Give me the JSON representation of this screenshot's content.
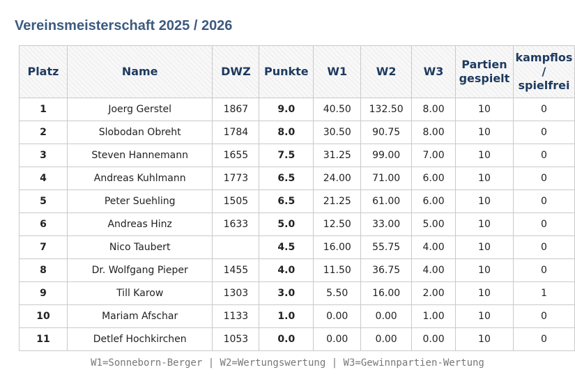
{
  "title": "Vereinsmeisterschaft 2025 / 2026",
  "columns": {
    "platz": "Platz",
    "name": "Name",
    "dwz": "DWZ",
    "punkte": "Punkte",
    "w1": "W1",
    "w2": "W2",
    "w3": "W3",
    "partien": [
      "Partien",
      "gespielt"
    ],
    "kampflos": [
      "kampflos",
      "/",
      "spielfrei"
    ]
  },
  "rows": [
    {
      "platz": "1",
      "name": "Joerg Gerstel",
      "dwz": "1867",
      "punkte": "9.0",
      "w1": "40.50",
      "w2": "132.50",
      "w3": "8.00",
      "partien": "10",
      "kampflos": "0"
    },
    {
      "platz": "2",
      "name": "Slobodan Obreht",
      "dwz": "1784",
      "punkte": "8.0",
      "w1": "30.50",
      "w2": "90.75",
      "w3": "8.00",
      "partien": "10",
      "kampflos": "0"
    },
    {
      "platz": "3",
      "name": "Steven Hannemann",
      "dwz": "1655",
      "punkte": "7.5",
      "w1": "31.25",
      "w2": "99.00",
      "w3": "7.00",
      "partien": "10",
      "kampflos": "0"
    },
    {
      "platz": "4",
      "name": "Andreas Kuhlmann",
      "dwz": "1773",
      "punkte": "6.5",
      "w1": "24.00",
      "w2": "71.00",
      "w3": "6.00",
      "partien": "10",
      "kampflos": "0"
    },
    {
      "platz": "5",
      "name": "Peter Suehling",
      "dwz": "1505",
      "punkte": "6.5",
      "w1": "21.25",
      "w2": "61.00",
      "w3": "6.00",
      "partien": "10",
      "kampflos": "0"
    },
    {
      "platz": "6",
      "name": "Andreas Hinz",
      "dwz": "1633",
      "punkte": "5.0",
      "w1": "12.50",
      "w2": "33.00",
      "w3": "5.00",
      "partien": "10",
      "kampflos": "0"
    },
    {
      "platz": "7",
      "name": "Nico Taubert",
      "dwz": "",
      "punkte": "4.5",
      "w1": "16.00",
      "w2": "55.75",
      "w3": "4.00",
      "partien": "10",
      "kampflos": "0"
    },
    {
      "platz": "8",
      "name": "Dr. Wolfgang Pieper",
      "dwz": "1455",
      "punkte": "4.0",
      "w1": "11.50",
      "w2": "36.75",
      "w3": "4.00",
      "partien": "10",
      "kampflos": "0"
    },
    {
      "platz": "9",
      "name": "Till Karow",
      "dwz": "1303",
      "punkte": "3.0",
      "w1": "5.50",
      "w2": "16.00",
      "w3": "2.00",
      "partien": "10",
      "kampflos": "1"
    },
    {
      "platz": "10",
      "name": "Mariam Afschar",
      "dwz": "1133",
      "punkte": "1.0",
      "w1": "0.00",
      "w2": "0.00",
      "w3": "1.00",
      "partien": "10",
      "kampflos": "0"
    },
    {
      "platz": "11",
      "name": "Detlef Hochkirchen",
      "dwz": "1053",
      "punkte": "0.0",
      "w1": "0.00",
      "w2": "0.00",
      "w3": "0.00",
      "partien": "10",
      "kampflos": "0"
    }
  ],
  "footer": "W1=Sonneborn-Berger | W2=Wertungswertung | W3=Gewinnpartien-Wertung"
}
